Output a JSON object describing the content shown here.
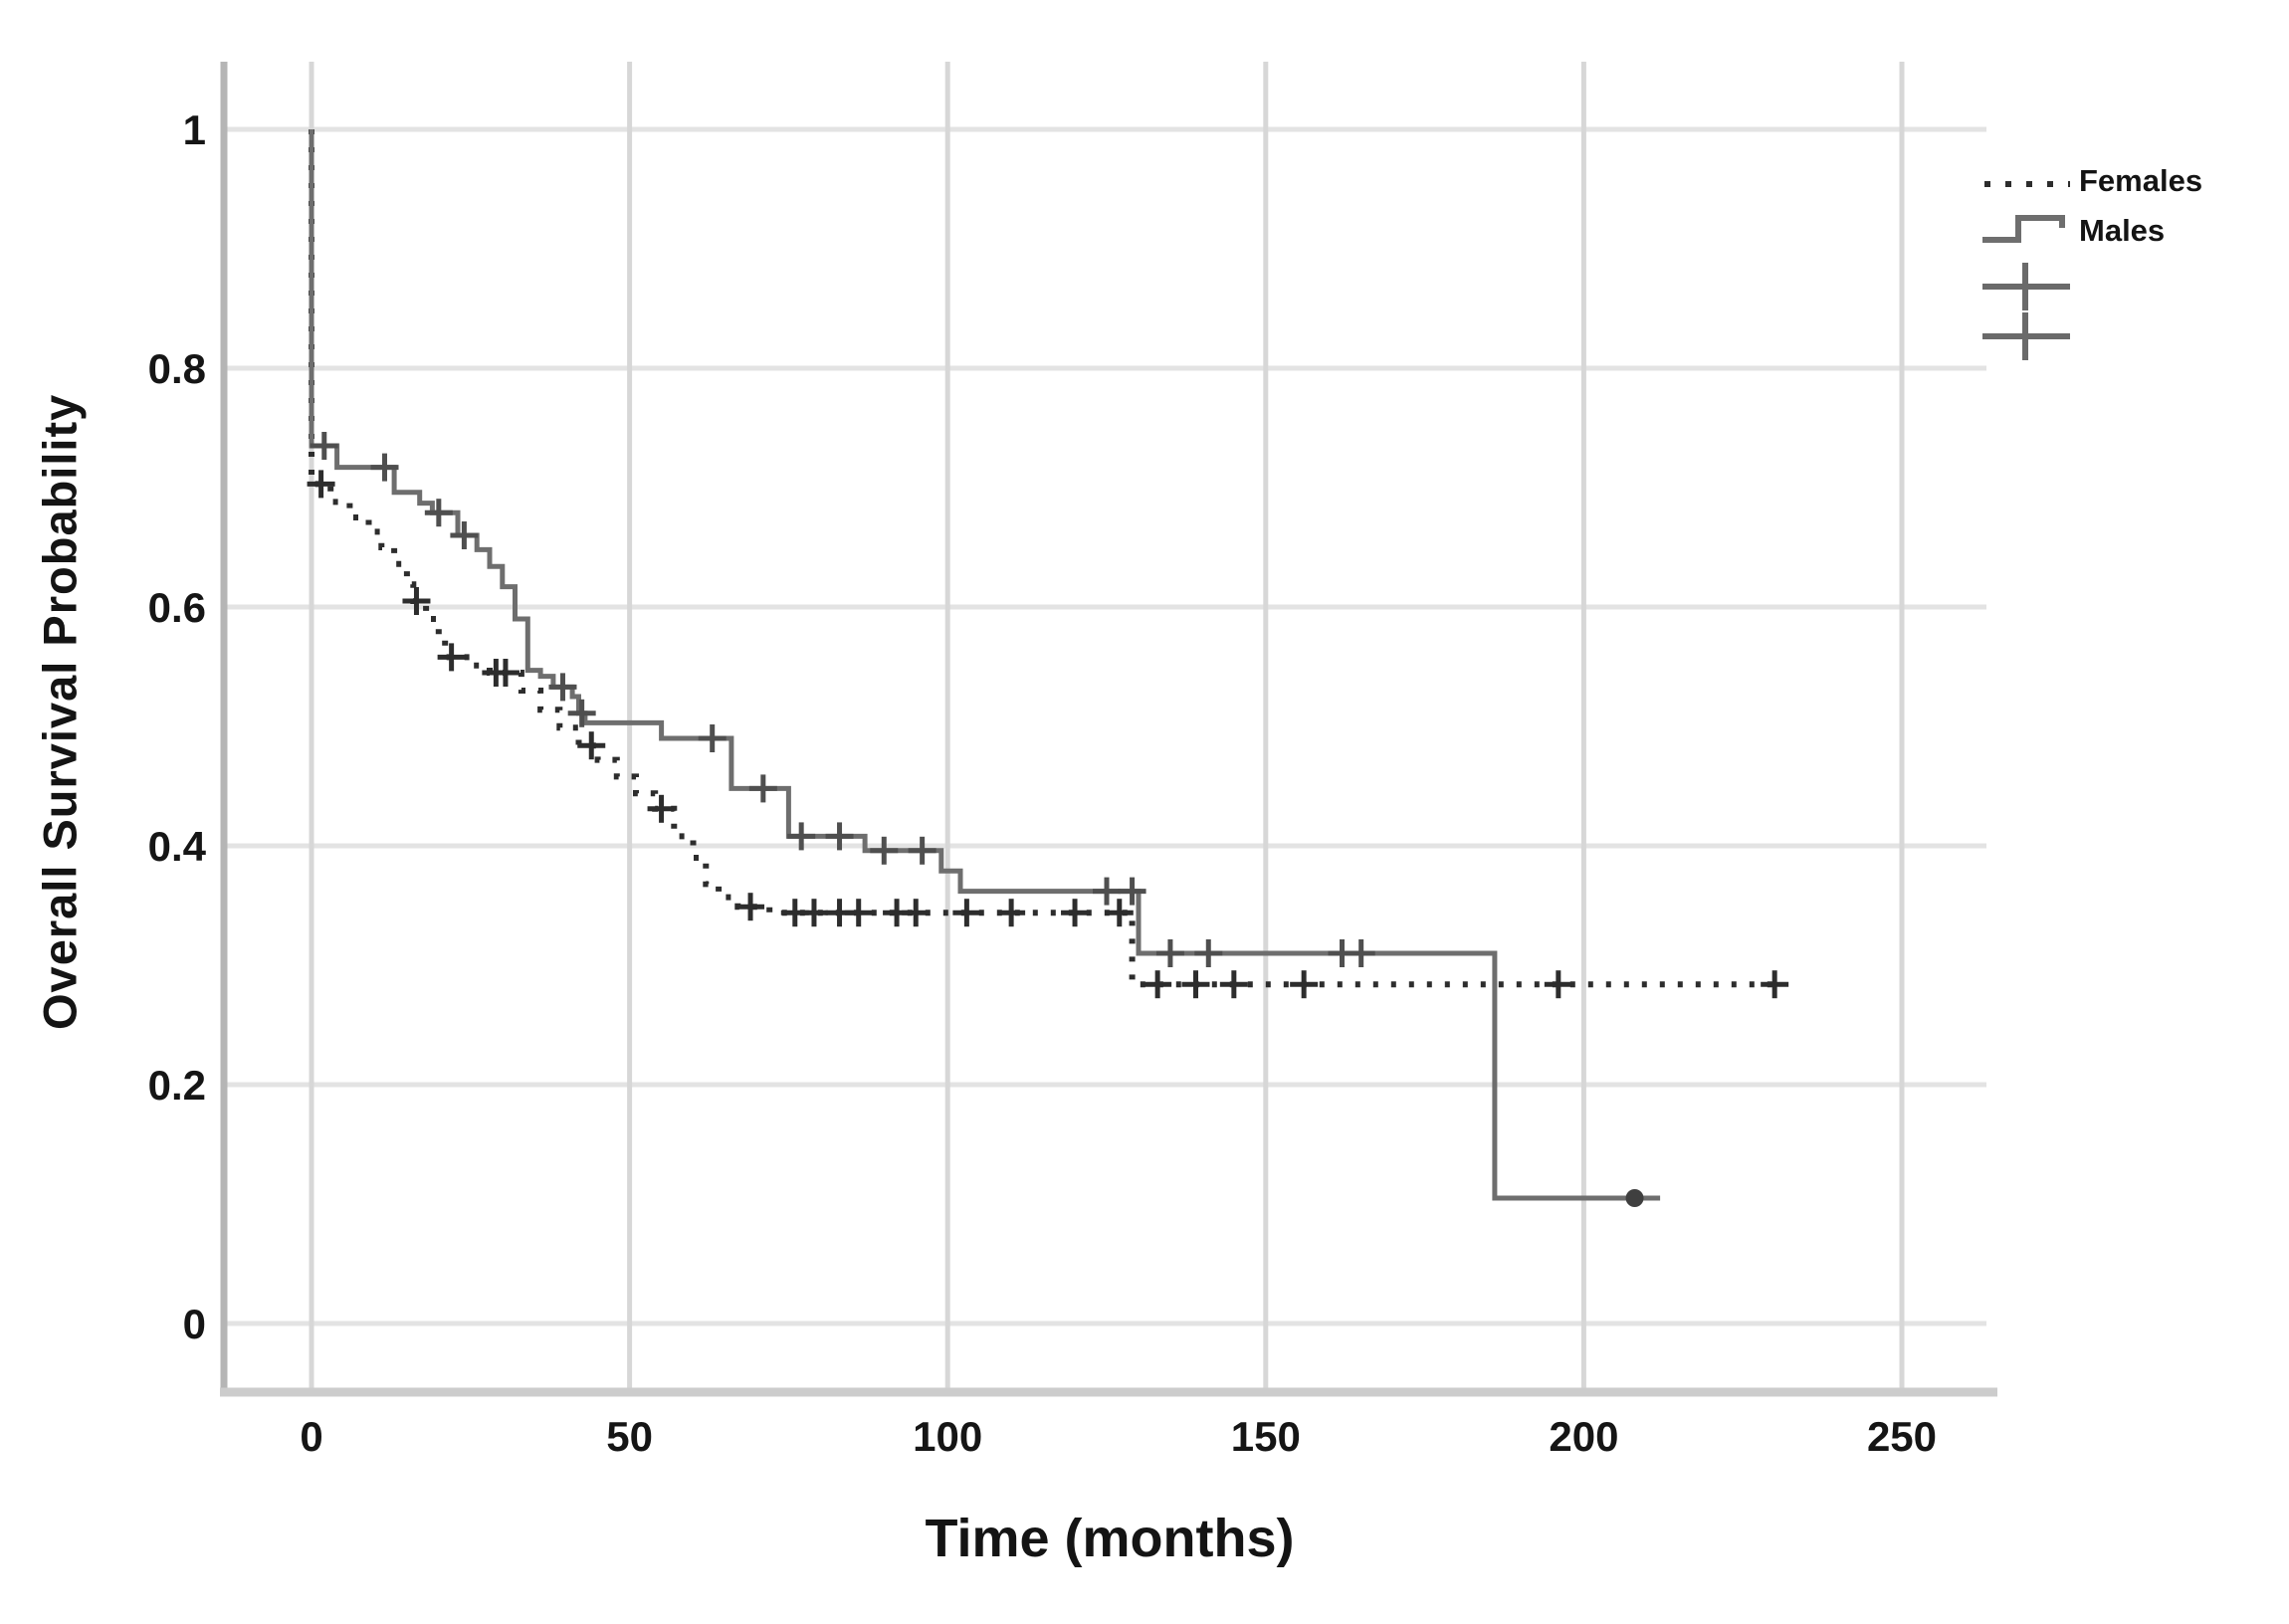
{
  "chart_data": {
    "type": "line",
    "chart_kind": "kaplan_meier_step_survival",
    "title": "",
    "xlabel": "Time (months)",
    "ylabel": "Overall Survival Probability",
    "xlim": [
      0,
      263
    ],
    "ylim": [
      0,
      1
    ],
    "grid": true,
    "x_ticks": [
      {
        "value": 0,
        "label": "0"
      },
      {
        "value": 50,
        "label": "50"
      },
      {
        "value": 100,
        "label": "100"
      },
      {
        "value": 150,
        "label": "150"
      },
      {
        "value": 200,
        "label": "200"
      },
      {
        "value": 250,
        "label": "250"
      }
    ],
    "y_ticks": [
      {
        "value": 0,
        "label": "0"
      },
      {
        "value": 0.2,
        "label": "0.2"
      },
      {
        "value": 0.4,
        "label": "0.4"
      },
      {
        "value": 0.6,
        "label": "0.6"
      },
      {
        "value": 0.8,
        "label": "0.8"
      },
      {
        "value": 1,
        "label": "1"
      }
    ],
    "legend": {
      "position": "top-right",
      "entries": [
        {
          "label": "Females",
          "sample": "dotted-line"
        },
        {
          "label": "Males",
          "sample": "step-line"
        },
        {
          "label": "",
          "sample": "plus-censor-marker"
        },
        {
          "label": "",
          "sample": "plus-censor-marker"
        }
      ]
    },
    "series": [
      {
        "name": "Females",
        "line_style": "dotted",
        "color": "#2d2d2d",
        "start": [
          0,
          1.0
        ],
        "steps": [
          [
            0,
            0.703
          ],
          [
            3,
            0.688
          ],
          [
            6,
            0.675
          ],
          [
            9,
            0.663
          ],
          [
            11,
            0.65
          ],
          [
            13,
            0.636
          ],
          [
            15,
            0.619
          ],
          [
            16,
            0.605
          ],
          [
            18,
            0.59
          ],
          [
            20,
            0.573
          ],
          [
            21,
            0.558
          ],
          [
            25,
            0.551
          ],
          [
            28,
            0.545
          ],
          [
            33,
            0.53
          ],
          [
            36,
            0.514
          ],
          [
            39,
            0.499
          ],
          [
            42,
            0.484
          ],
          [
            45,
            0.472
          ],
          [
            48,
            0.458
          ],
          [
            51,
            0.444
          ],
          [
            54,
            0.431
          ],
          [
            57,
            0.408
          ],
          [
            60,
            0.39
          ],
          [
            62,
            0.368
          ],
          [
            64,
            0.357
          ],
          [
            67,
            0.349
          ],
          [
            72,
            0.344
          ],
          [
            129,
            0.284
          ]
        ],
        "censor_marks": [
          [
            1.5,
            0.703
          ],
          [
            16.5,
            0.605
          ],
          [
            22,
            0.558
          ],
          [
            29,
            0.545
          ],
          [
            30.5,
            0.545
          ],
          [
            44,
            0.484
          ],
          [
            55,
            0.431
          ],
          [
            69,
            0.349
          ],
          [
            76,
            0.344
          ],
          [
            79,
            0.344
          ],
          [
            83,
            0.344
          ],
          [
            86,
            0.344
          ],
          [
            92,
            0.344
          ],
          [
            95,
            0.344
          ],
          [
            103,
            0.344
          ],
          [
            110,
            0.344
          ],
          [
            120,
            0.344
          ],
          [
            127,
            0.344
          ],
          [
            133,
            0.284
          ],
          [
            139,
            0.284
          ],
          [
            145,
            0.284
          ],
          [
            156,
            0.284
          ],
          [
            196,
            0.284
          ],
          [
            230,
            0.284
          ]
        ],
        "end_time": 231
      },
      {
        "name": "Males",
        "line_style": "solid",
        "color": "#6e6e6e",
        "censor_color": "#4f4f4f",
        "start": [
          0,
          1.0
        ],
        "steps": [
          [
            0,
            0.735
          ],
          [
            4,
            0.717
          ],
          [
            13,
            0.696
          ],
          [
            17,
            0.687
          ],
          [
            19,
            0.679
          ],
          [
            23,
            0.66
          ],
          [
            26,
            0.648
          ],
          [
            28,
            0.634
          ],
          [
            30,
            0.617
          ],
          [
            32,
            0.59
          ],
          [
            34,
            0.547
          ],
          [
            36,
            0.542
          ],
          [
            38,
            0.533
          ],
          [
            41,
            0.525
          ],
          [
            42,
            0.511
          ],
          [
            43,
            0.503
          ],
          [
            55,
            0.49
          ],
          [
            66,
            0.448
          ],
          [
            75,
            0.408
          ],
          [
            87,
            0.396
          ],
          [
            99,
            0.379
          ],
          [
            102,
            0.362
          ],
          [
            130,
            0.31
          ],
          [
            186,
            0.105
          ]
        ],
        "censor_marks": [
          [
            2,
            0.735
          ],
          [
            11.5,
            0.717
          ],
          [
            20,
            0.679
          ],
          [
            24,
            0.66
          ],
          [
            39.5,
            0.533
          ],
          [
            42.5,
            0.511
          ],
          [
            63,
            0.49
          ],
          [
            71,
            0.448
          ],
          [
            77,
            0.408
          ],
          [
            83,
            0.408
          ],
          [
            90,
            0.396
          ],
          [
            96,
            0.396
          ],
          [
            125,
            0.362
          ],
          [
            129,
            0.362
          ],
          [
            135,
            0.31
          ],
          [
            141,
            0.31
          ],
          [
            162,
            0.31
          ],
          [
            165,
            0.31
          ]
        ],
        "end_time": 212,
        "end_dot": [
          208,
          0.105
        ]
      }
    ]
  },
  "colors": {
    "grid_horizontal": "#e3e3e3",
    "grid_vertical": "#d7d7d7",
    "axis_left": "#b5b5b5",
    "axis_bottom": "#cccccc",
    "tick_text": "#151515",
    "legend_plus": "#6a6a6a"
  }
}
